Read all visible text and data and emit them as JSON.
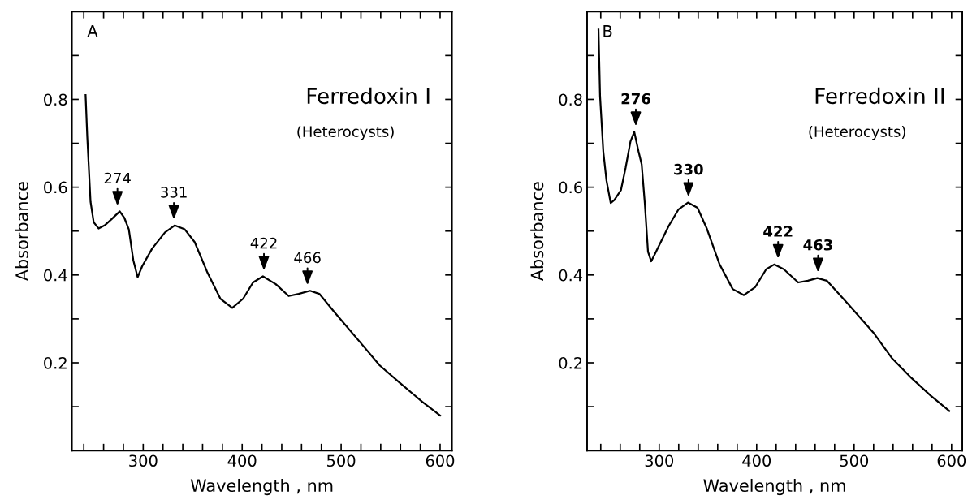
{
  "chart_data": [
    {
      "type": "line",
      "title": "Ferredoxin I",
      "subtitle": "(Heterocysts)",
      "xlabel": "Wavelength , nm",
      "ylabel": "Absorbance",
      "annotations": [
        "A",
        {
          "text": "274",
          "x": 274,
          "y": 0.545
        },
        {
          "text": "331",
          "x": 331,
          "y": 0.513
        },
        {
          "text": "422",
          "x": 422,
          "y": 0.397
        },
        {
          "text": "466",
          "x": 466,
          "y": 0.364
        }
      ],
      "x": [
        241.8,
        243.5,
        246.8,
        250,
        255,
        261.6,
        268,
        276.3,
        281,
        285.5,
        290,
        294.4,
        299,
        309,
        322,
        332,
        342,
        352,
        365,
        378,
        390,
        401,
        411,
        421,
        434,
        447,
        457,
        468.6,
        478,
        493,
        519.5,
        539,
        559,
        582,
        600
      ],
      "series": [
        {
          "color": "#000000",
          "values": [
            0.81,
            0.715,
            0.567,
            0.52,
            0.506,
            0.514,
            0.527,
            0.545,
            0.53,
            0.504,
            0.434,
            0.395,
            0.42,
            0.46,
            0.497,
            0.513,
            0.504,
            0.475,
            0.405,
            0.346,
            0.325,
            0.346,
            0.383,
            0.397,
            0.379,
            0.352,
            0.357,
            0.364,
            0.357,
            0.316,
            0.246,
            0.194,
            0.155,
            0.111,
            0.08
          ]
        }
      ],
      "xlim": [
        228,
        612
      ],
      "ylim": [
        0,
        1.0
      ],
      "xticks": [
        {
          "value": 240,
          "label": null
        },
        {
          "value": 260,
          "label": null
        },
        {
          "value": 280,
          "label": null
        },
        300,
        {
          "value": 320,
          "label": null
        },
        {
          "value": 340,
          "label": null
        },
        {
          "value": 360,
          "label": null
        },
        {
          "value": 380,
          "label": null
        },
        400,
        {
          "value": 420,
          "label": null
        },
        {
          "value": 440,
          "label": null
        },
        {
          "value": 460,
          "label": null
        },
        {
          "value": 480,
          "label": null
        },
        500,
        {
          "value": 520,
          "label": null
        },
        {
          "value": 540,
          "label": null
        },
        {
          "value": 560,
          "label": null
        },
        {
          "value": 580,
          "label": null
        },
        600
      ],
      "yticks": [
        {
          "value": 0.1,
          "label": null
        },
        0.2,
        {
          "value": 0.3,
          "label": null
        },
        0.4,
        {
          "value": 0.5,
          "label": null
        },
        0.6,
        {
          "value": 0.7,
          "label": null
        },
        0.8,
        {
          "value": 0.9,
          "label": null
        }
      ],
      "grid": false,
      "legend": false,
      "marker": "none",
      "line_style": "solid"
    },
    {
      "type": "line",
      "title": "Ferredoxin II",
      "subtitle": "(Heterocysts)",
      "xlabel": "Wavelength , nm",
      "ylabel": "Absorbance",
      "annotations": [
        "B",
        {
          "text": "276",
          "x": 276,
          "y": 0.726
        },
        {
          "text": "330",
          "x": 330,
          "y": 0.565
        },
        {
          "text": "422",
          "x": 422,
          "y": 0.424
        },
        {
          "text": "463",
          "x": 463,
          "y": 0.393
        }
      ],
      "x": [
        237.7,
        239.3,
        242.6,
        245.9,
        250.2,
        254,
        260.7,
        265.6,
        270.5,
        274.4,
        278.7,
        282,
        285.2,
        288.5,
        291.8,
        296.7,
        309.8,
        319.7,
        329.5,
        339.3,
        349,
        362,
        375.4,
        386.9,
        398.4,
        409.8,
        418,
        427.9,
        442.6,
        452.5,
        462.3,
        472,
        493.4,
        519.7,
        539,
        559,
        578.7,
        597.7
      ],
      "series": [
        {
          "color": "#000000",
          "values": [
            0.959,
            0.807,
            0.682,
            0.615,
            0.564,
            0.571,
            0.593,
            0.645,
            0.704,
            0.726,
            0.682,
            0.652,
            0.564,
            0.453,
            0.431,
            0.453,
            0.512,
            0.549,
            0.565,
            0.553,
            0.505,
            0.424,
            0.368,
            0.354,
            0.372,
            0.413,
            0.424,
            0.413,
            0.383,
            0.387,
            0.393,
            0.387,
            0.335,
            0.269,
            0.21,
            0.165,
            0.125,
            0.09
          ]
        }
      ],
      "xlim": [
        226,
        611
      ],
      "ylim": [
        0,
        1.0
      ],
      "xticks": [
        {
          "value": 240,
          "label": null
        },
        {
          "value": 260,
          "label": null
        },
        {
          "value": 280,
          "label": null
        },
        300,
        {
          "value": 320,
          "label": null
        },
        {
          "value": 340,
          "label": null
        },
        {
          "value": 360,
          "label": null
        },
        {
          "value": 380,
          "label": null
        },
        400,
        {
          "value": 420,
          "label": null
        },
        {
          "value": 440,
          "label": null
        },
        {
          "value": 460,
          "label": null
        },
        {
          "value": 480,
          "label": null
        },
        500,
        {
          "value": 520,
          "label": null
        },
        {
          "value": 540,
          "label": null
        },
        {
          "value": 560,
          "label": null
        },
        {
          "value": 580,
          "label": null
        },
        600
      ],
      "yticks": [
        {
          "value": 0.1,
          "label": null
        },
        0.2,
        {
          "value": 0.3,
          "label": null
        },
        0.4,
        {
          "value": 0.5,
          "label": null
        },
        0.6,
        {
          "value": 0.7,
          "label": null
        },
        0.8,
        {
          "value": 0.9,
          "label": null
        }
      ],
      "grid": false,
      "legend": false,
      "marker": "none",
      "line_style": "solid"
    }
  ]
}
